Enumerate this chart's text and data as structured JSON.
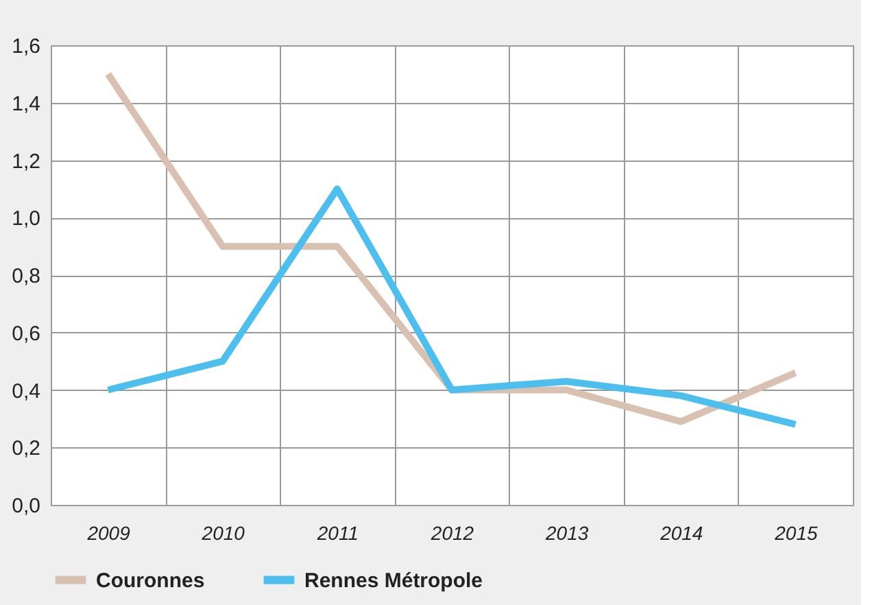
{
  "chart_data": {
    "type": "line",
    "categories": [
      "2009",
      "2010",
      "2011",
      "2012",
      "2013",
      "2014",
      "2015"
    ],
    "series": [
      {
        "name": "Couronnes",
        "color": "#d9c1b2",
        "values": [
          1.5,
          0.9,
          0.9,
          0.4,
          0.4,
          0.29,
          0.46
        ]
      },
      {
        "name": "Rennes Métropole",
        "color": "#4dbfee",
        "values": [
          0.4,
          0.5,
          1.1,
          0.4,
          0.43,
          0.38,
          0.28
        ]
      }
    ],
    "ylim": [
      0,
      1.6
    ],
    "yticks": [
      {
        "value": 0,
        "label": "0,0"
      },
      {
        "value": 0.2,
        "label": "0,2"
      },
      {
        "value": 0.4,
        "label": "0,4"
      },
      {
        "value": 0.6,
        "label": "0,6"
      },
      {
        "value": 0.8,
        "label": "0,8"
      },
      {
        "value": 1.0,
        "label": "1,0"
      },
      {
        "value": 1.2,
        "label": "1,2"
      },
      {
        "value": 1.4,
        "label": "1,4"
      },
      {
        "value": 1.6,
        "label": "1,6"
      }
    ],
    "grid": true,
    "legend": "bottom left",
    "marker": "none",
    "line_style": "solid"
  }
}
